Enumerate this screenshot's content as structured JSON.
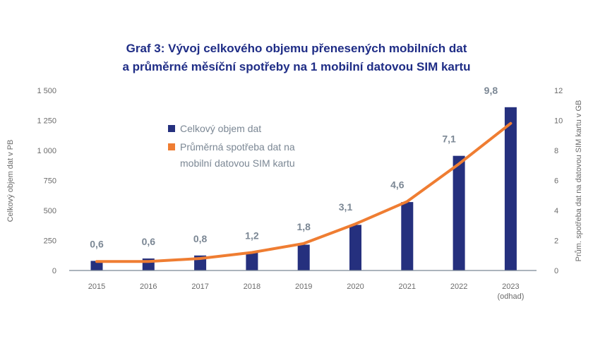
{
  "colors": {
    "title": "#1f2d86",
    "bar": "#25307e",
    "line": "#ef7d32",
    "tick": "#6b6b6b",
    "data_label": "#7b8794",
    "axis": "#7b8794",
    "legend_text": "#7b8794"
  },
  "chart_data": {
    "type": "bar",
    "title": "Graf 3: Vývoj celkového objemu přenesených mobilních dat",
    "subtitle": "a průměrné měsíční spotřeby na 1 mobilní datovou SIM kartu",
    "categories": [
      "2015",
      "2016",
      "2017",
      "2018",
      "2019",
      "2020",
      "2021",
      "2022",
      "2023"
    ],
    "category_notes": [
      "",
      "",
      "",
      "",
      "",
      "",
      "",
      "",
      "(odhad)"
    ],
    "ylabel": "Celkový objem dat v PB",
    "y2label": "Prům. spotřeba dat na datovou SIM kartu v GB",
    "ylim": [
      0,
      1500
    ],
    "y2lim": [
      0,
      12
    ],
    "yticks": [
      0,
      250,
      500,
      750,
      1000,
      1250,
      1500
    ],
    "yticks_labels": [
      "0",
      "250",
      "500",
      "750",
      "1 000",
      "1 250",
      "1 500"
    ],
    "y2ticks": [
      0,
      2,
      4,
      6,
      8,
      10,
      12
    ],
    "y2ticks_labels": [
      "0",
      "2",
      "4",
      "6",
      "8",
      "10",
      "12"
    ],
    "grid": false,
    "legend_position": "top-left",
    "series": [
      {
        "name": "Celkový objem dat",
        "type": "bar",
        "axis": "left",
        "values": [
          80,
          100,
          125,
          150,
          215,
          380,
          570,
          955,
          1360
        ]
      },
      {
        "name": "Průměrná spotřeba dat na mobilní datovou SIM kartu",
        "name_lines": [
          "Průměrná spotřeba dat na",
          "mobilní datovou SIM kartu"
        ],
        "type": "line",
        "axis": "right",
        "values": [
          0.6,
          0.6,
          0.8,
          1.2,
          1.8,
          3.1,
          4.6,
          7.1,
          9.8
        ],
        "data_labels": [
          "0,6",
          "0,6",
          "0,8",
          "1,2",
          "1,8",
          "3,1",
          "4,6",
          "7,1",
          "9,8"
        ]
      }
    ]
  }
}
